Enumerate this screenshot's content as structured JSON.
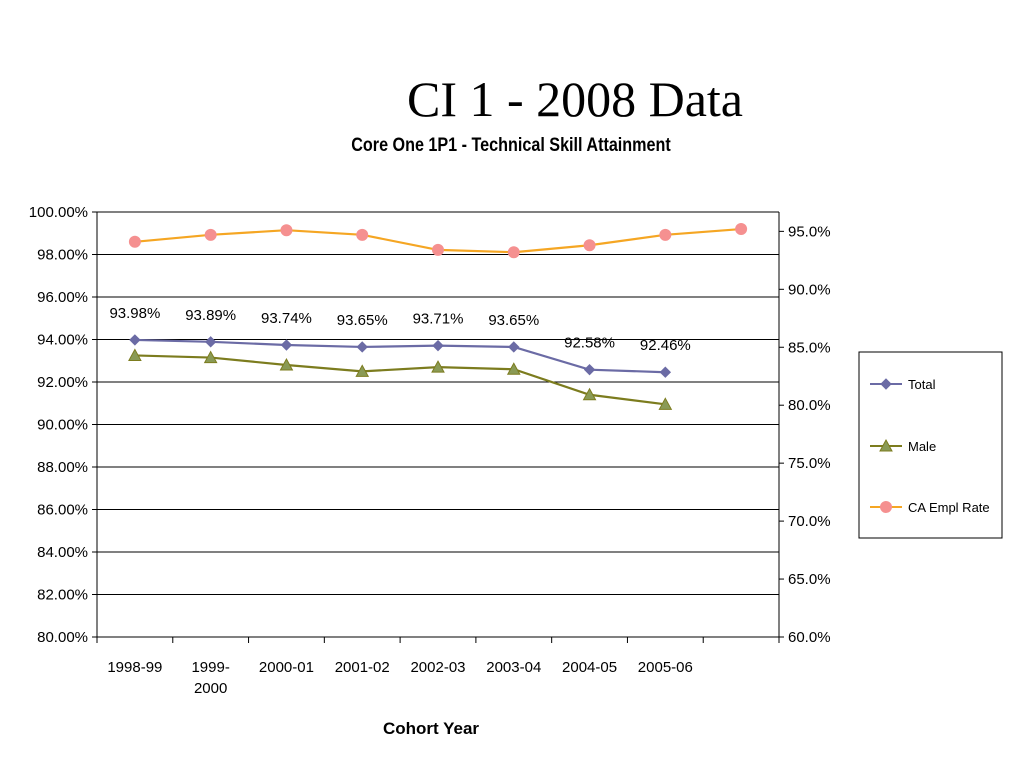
{
  "slide": {
    "title": "CI 1 - 2008 Data"
  },
  "chart_data": {
    "type": "line",
    "title": "Core One 1P1 - Technical Skill Attainment",
    "xlabel": "Cohort Year",
    "categories": [
      "1998-99",
      "1999-2000",
      "2000-01",
      "2001-02",
      "2002-03",
      "2003-04",
      "2004-05",
      "2005-06",
      ""
    ],
    "y_left": {
      "lim": [
        80,
        100
      ],
      "ticks": [
        "80.00%",
        "82.00%",
        "84.00%",
        "86.00%",
        "88.00%",
        "90.00%",
        "92.00%",
        "94.00%",
        "96.00%",
        "98.00%",
        "100.00%"
      ]
    },
    "y_right": {
      "lim": [
        60,
        96.67
      ],
      "ticks": [
        "60.0%",
        "65.0%",
        "70.0%",
        "75.0%",
        "80.0%",
        "85.0%",
        "90.0%",
        "95.0%"
      ]
    },
    "gridlines": true,
    "legend_position": "right",
    "series": [
      {
        "name": "Total",
        "axis": "left",
        "color": "#6b6ba5",
        "marker": "diamond",
        "values": [
          93.98,
          93.89,
          93.74,
          93.65,
          93.71,
          93.65,
          92.58,
          92.46,
          null
        ],
        "labels": [
          "93.98%",
          "93.89%",
          "93.74%",
          "93.65%",
          "93.71%",
          "93.65%",
          "92.58%",
          "92.46%",
          ""
        ]
      },
      {
        "name": "Male",
        "axis": "left",
        "color": "#7c7c1e",
        "marker_fill": "#8a9a55",
        "marker": "triangle",
        "values": [
          93.25,
          93.15,
          92.8,
          92.5,
          92.7,
          92.6,
          91.4,
          90.95,
          null
        ]
      },
      {
        "name": "CA Empl Rate",
        "axis": "right",
        "color": "#f5a623",
        "marker_fill": "#f59090",
        "marker": "circle",
        "values": [
          94.1,
          94.7,
          95.1,
          94.7,
          93.4,
          93.2,
          93.8,
          94.7,
          95.2
        ]
      }
    ]
  }
}
